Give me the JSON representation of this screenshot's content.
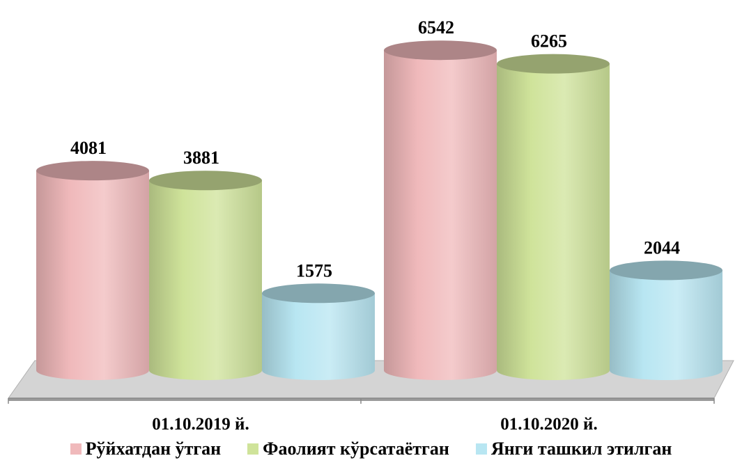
{
  "chart_data": {
    "type": "bar",
    "style": "3d-cylinder",
    "categories": [
      "01.10.2019 й.",
      "01.10.2020 й."
    ],
    "series": [
      {
        "name": "Рўйхатдан ўтган",
        "values": [
          4081,
          6542
        ],
        "color": "#f0b9bb"
      },
      {
        "name": "Фаолият кўрсатаётган",
        "values": [
          3881,
          6265
        ],
        "color": "#cfe39a"
      },
      {
        "name": "Янги ташкил этилган",
        "values": [
          1575,
          2044
        ],
        "color": "#b8e6f2"
      }
    ],
    "title": "",
    "xlabel": "",
    "ylabel": "",
    "ylim": [
      0,
      7000
    ],
    "grid": false,
    "legend_position": "bottom",
    "data_labels": true
  }
}
